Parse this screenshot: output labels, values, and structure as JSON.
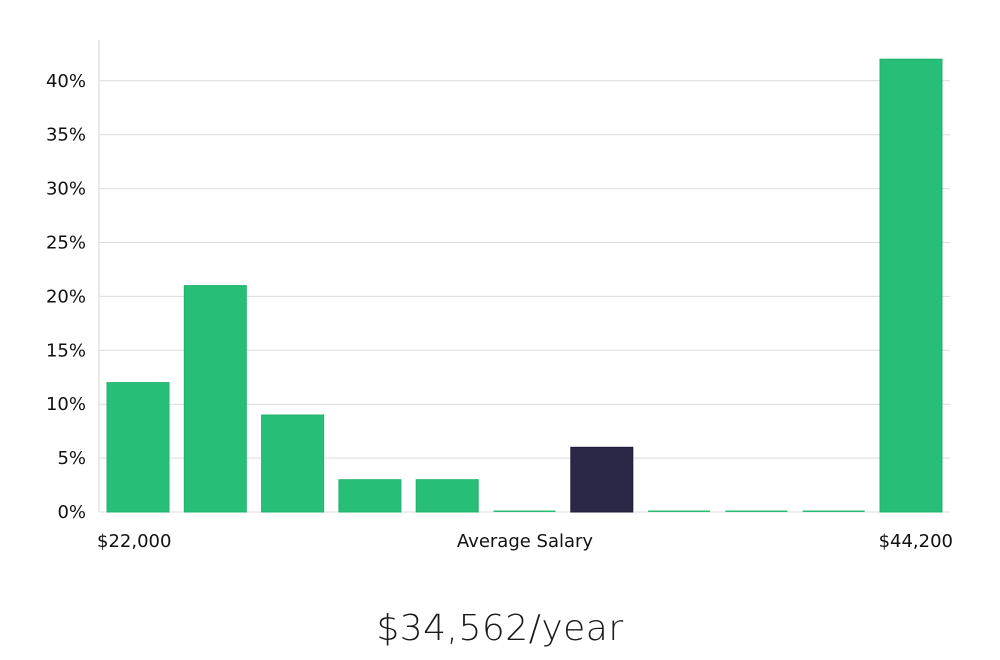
{
  "chart_data": {
    "type": "bar",
    "title": "",
    "xlabel": "Average Salary",
    "ylabel": "",
    "x_min_label": "$22,000",
    "x_max_label": "$44,200",
    "ylim": [
      0,
      43
    ],
    "y_ticks": [
      0,
      5,
      10,
      15,
      20,
      25,
      30,
      35,
      40
    ],
    "y_tick_labels": [
      "0%",
      "5%",
      "10%",
      "15%",
      "20%",
      "25%",
      "30%",
      "35%",
      "40%"
    ],
    "grid": true,
    "values": [
      12,
      21,
      9,
      3,
      3,
      0,
      6,
      0,
      0,
      0,
      42
    ],
    "highlight_index": 6,
    "colors": {
      "bar": "#27bf78",
      "bar_edge": "#22b06d",
      "highlight": "#2a2747",
      "grid": "#dcdcdc",
      "axis": "#cfcfcf"
    }
  },
  "summary": {
    "average_salary": "$34,562/year"
  }
}
